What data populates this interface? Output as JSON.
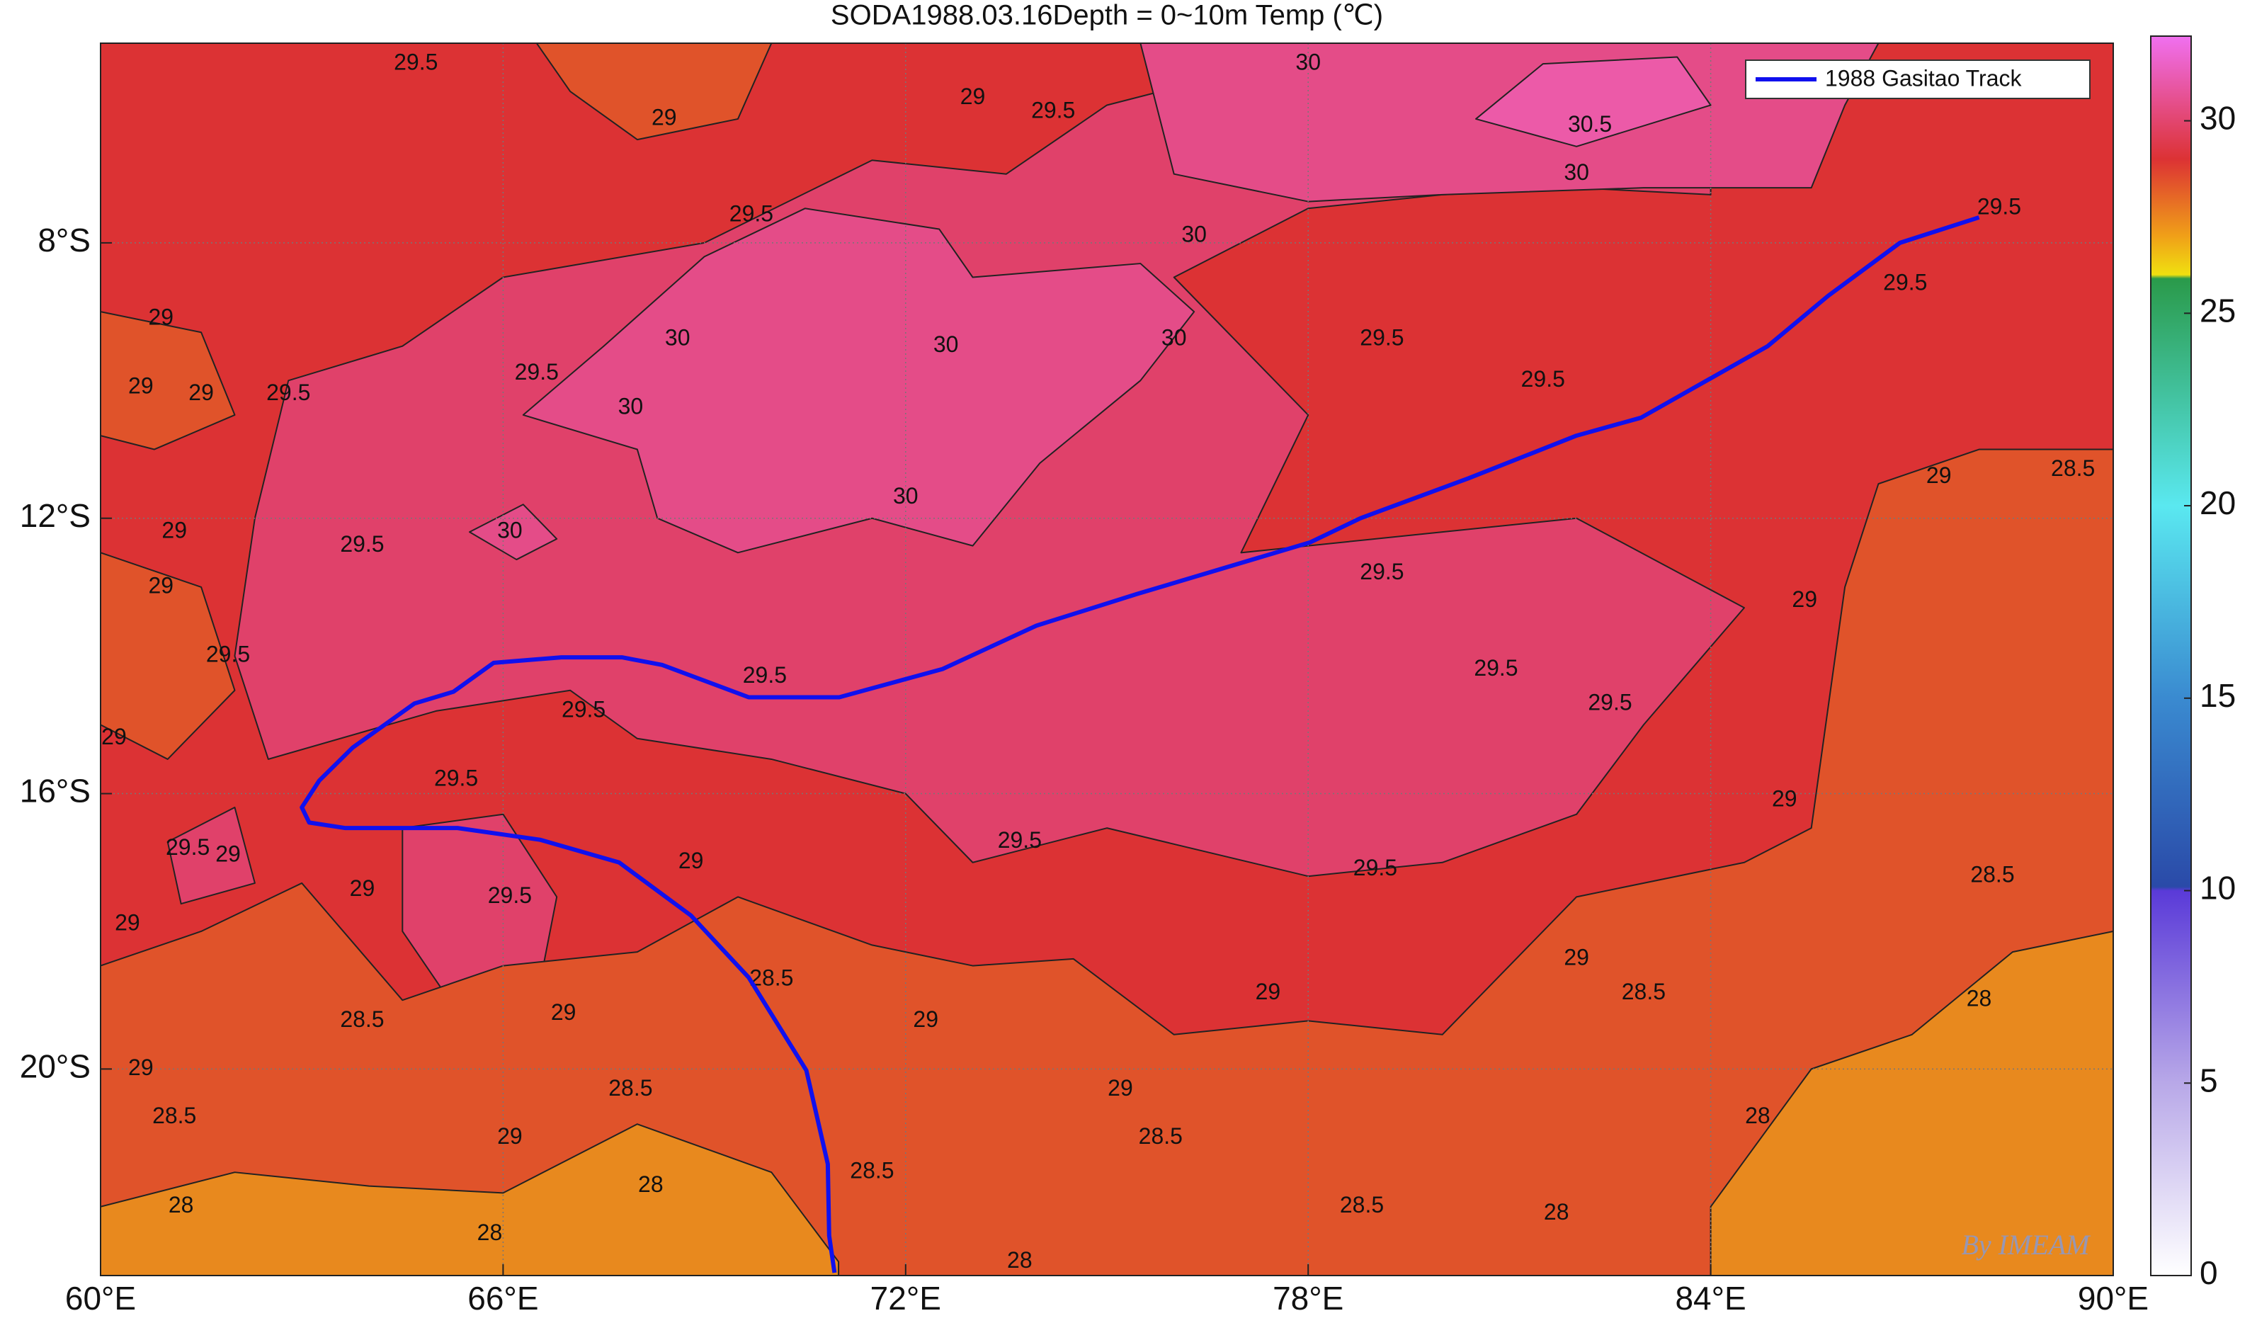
{
  "chart_data": {
    "type": "contour-map",
    "title": "SODA1988.03.16Depth = 0~10m Temp (℃)",
    "xlim": [
      60,
      90
    ],
    "ylim": [
      -23,
      -5.1
    ],
    "xticks": [
      {
        "value": 60,
        "label": "60°E"
      },
      {
        "value": 66,
        "label": "66°E"
      },
      {
        "value": 72,
        "label": "72°E"
      },
      {
        "value": 78,
        "label": "78°E"
      },
      {
        "value": 84,
        "label": "84°E"
      },
      {
        "value": 90,
        "label": "90°E"
      }
    ],
    "yticks": [
      {
        "value": -8,
        "label": "8°S"
      },
      {
        "value": -12,
        "label": "12°S"
      },
      {
        "value": -16,
        "label": "16°S"
      },
      {
        "value": -20,
        "label": "20°S"
      }
    ],
    "grid": true,
    "background_color": "#dc3234",
    "regions": [
      {
        "level": 29.5,
        "color": "#e0416a",
        "lon": [
          62.3,
          62.8,
          64.5,
          66,
          69,
          71.5,
          73.5,
          75,
          77,
          80,
          84,
          84,
          82,
          80,
          78,
          76,
          78,
          77,
          80,
          82,
          84.5,
          83,
          82,
          80,
          78,
          75,
          73,
          72,
          70,
          68,
          67,
          65,
          62.5,
          62
        ],
        "lat": [
          -12,
          -10,
          -9.5,
          -8.5,
          -8,
          -6.8,
          -7,
          -6,
          -5.5,
          -5.2,
          -5.1,
          -7.3,
          -7.2,
          -7.3,
          -7.5,
          -8.5,
          -10.5,
          -12.5,
          -12.2,
          -12,
          -13.3,
          -15,
          -16.3,
          -17,
          -17.2,
          -16.5,
          -17,
          -16,
          -15.5,
          -15.2,
          -14.5,
          -14.8,
          -15.5,
          -14
        ]
      },
      {
        "level": 29.5,
        "color": "#e0416a",
        "lon": [
          64.5,
          66,
          66.8,
          66.5,
          65.2,
          64.5
        ],
        "lat": [
          -16.5,
          -16.3,
          -17.5,
          -19,
          -19,
          -18
        ]
      },
      {
        "level": 29.5,
        "color": "#e0416a",
        "lon": [
          61,
          62,
          62.3,
          61.2
        ],
        "lat": [
          -16.7,
          -16.2,
          -17.3,
          -17.6
        ]
      },
      {
        "level": 30,
        "color": "#e44c88",
        "lon": [
          66.3,
          67.5,
          69,
          70.5,
          72.5,
          73,
          75.5,
          76.3,
          75.5,
          74,
          73,
          71.5,
          69.5,
          68.3,
          68
        ],
        "lat": [
          -10.5,
          -9.5,
          -8.2,
          -7.5,
          -7.8,
          -8.5,
          -8.3,
          -9,
          -10,
          -11.2,
          -12.4,
          -12,
          -12.5,
          -12,
          -11
        ]
      },
      {
        "level": 30,
        "color": "#e44c88",
        "lon": [
          75.5,
          76,
          78,
          80,
          83,
          85.5,
          86,
          86.5
        ],
        "lat": [
          -5.1,
          -7,
          -7.4,
          -7.3,
          -7.2,
          -7.2,
          -6,
          -5.1
        ]
      },
      {
        "level": 30,
        "color": "#e44c88",
        "lon": [
          65.5,
          66.3,
          66.8,
          66.2
        ],
        "lat": [
          -12.2,
          -11.8,
          -12.3,
          -12.6
        ]
      },
      {
        "level": 30.5,
        "color": "#ec5aa8",
        "lon": [
          80.5,
          81.5,
          83.5,
          84,
          82
        ],
        "lat": [
          -6.2,
          -5.4,
          -5.3,
          -6,
          -6.6
        ]
      },
      {
        "level": 28.5,
        "color": "#e0532a",
        "lon": [
          60,
          60,
          61.5,
          63,
          64.5,
          66,
          68,
          69.5,
          71.5,
          73,
          74.5,
          76,
          78,
          80,
          82,
          84.5,
          85.5,
          86,
          86.5,
          88,
          90,
          90
        ],
        "lat": [
          -23,
          -18.5,
          -18,
          -17.3,
          -19,
          -18.5,
          -18.3,
          -17.5,
          -18.2,
          -18.5,
          -18.4,
          -19.5,
          -19.3,
          -19.5,
          -17.5,
          -17,
          -16.5,
          -13,
          -11.5,
          -11,
          -11,
          -23
        ]
      },
      {
        "level": 28.5,
        "color": "#e0532a",
        "lon": [
          60,
          61.5,
          62,
          60.8,
          60
        ],
        "lat": [
          -9,
          -9.3,
          -10.5,
          -11,
          -10.8
        ]
      },
      {
        "level": 28.5,
        "color": "#e0532a",
        "lon": [
          60,
          61.5,
          62,
          61,
          60
        ],
        "lat": [
          -12.5,
          -13,
          -14.5,
          -15.5,
          -15
        ]
      },
      {
        "level": 28.5,
        "color": "#e0532a",
        "lon": [
          66.5,
          70,
          69.5,
          68,
          67
        ],
        "lat": [
          -5.1,
          -5.1,
          -6.2,
          -6.5,
          -5.8
        ]
      },
      {
        "level": 28,
        "color": "#e8891e",
        "lon": [
          60,
          60,
          62,
          64,
          66,
          68,
          70,
          71,
          71
        ],
        "lat": [
          -23,
          -22,
          -21.5,
          -21.7,
          -21.8,
          -20.8,
          -21.5,
          -22.8,
          -23
        ]
      },
      {
        "level": 28,
        "color": "#e8891e",
        "lon": [
          84,
          84,
          85.5,
          87,
          88.5,
          90,
          90
        ],
        "lat": [
          -23,
          -22,
          -20,
          -19.5,
          -18.3,
          -18,
          -23
        ]
      }
    ],
    "contour_labels": [
      {
        "level": 29.5,
        "lon": 64.7,
        "lat": -5.4
      },
      {
        "level": 29,
        "lon": 68.4,
        "lat": -6.2
      },
      {
        "level": 29,
        "lon": 73.0,
        "lat": -5.9
      },
      {
        "level": 29.5,
        "lon": 74.2,
        "lat": -6.1
      },
      {
        "level": 30,
        "lon": 78.0,
        "lat": -5.4
      },
      {
        "level": 30.5,
        "lon": 82.2,
        "lat": -6.3
      },
      {
        "level": 30,
        "lon": 82.0,
        "lat": -7.0
      },
      {
        "level": 29.5,
        "lon": 88.3,
        "lat": -7.5
      },
      {
        "level": 29.5,
        "lon": 69.7,
        "lat": -7.6
      },
      {
        "level": 30,
        "lon": 76.3,
        "lat": -7.9
      },
      {
        "level": 29.5,
        "lon": 86.9,
        "lat": -8.6
      },
      {
        "level": 29,
        "lon": 60.9,
        "lat": -9.1
      },
      {
        "level": 30,
        "lon": 76.0,
        "lat": -9.4
      },
      {
        "level": 29.5,
        "lon": 79.1,
        "lat": -9.4
      },
      {
        "level": 30,
        "lon": 68.6,
        "lat": -9.4
      },
      {
        "level": 30,
        "lon": 72.6,
        "lat": -9.5
      },
      {
        "level": 29.5,
        "lon": 66.5,
        "lat": -9.9
      },
      {
        "level": 29.5,
        "lon": 81.5,
        "lat": -10.0
      },
      {
        "level": 29,
        "lon": 60.6,
        "lat": -10.1
      },
      {
        "level": 29.5,
        "lon": 62.8,
        "lat": -10.2
      },
      {
        "level": 29,
        "lon": 61.5,
        "lat": -10.2
      },
      {
        "level": 30,
        "lon": 67.9,
        "lat": -10.4
      },
      {
        "level": 28.5,
        "lon": 89.4,
        "lat": -11.3
      },
      {
        "level": 29,
        "lon": 87.4,
        "lat": -11.4
      },
      {
        "level": 30,
        "lon": 72.0,
        "lat": -11.7
      },
      {
        "level": 29,
        "lon": 61.1,
        "lat": -12.2
      },
      {
        "level": 30,
        "lon": 66.1,
        "lat": -12.2
      },
      {
        "level": 29.5,
        "lon": 63.9,
        "lat": -12.4
      },
      {
        "level": 29.5,
        "lon": 79.1,
        "lat": -12.8
      },
      {
        "level": 29,
        "lon": 60.9,
        "lat": -13.0
      },
      {
        "level": 29,
        "lon": 85.4,
        "lat": -13.2
      },
      {
        "level": 29.5,
        "lon": 61.9,
        "lat": -14.0
      },
      {
        "level": 29.5,
        "lon": 80.8,
        "lat": -14.2
      },
      {
        "level": 29.5,
        "lon": 69.9,
        "lat": -14.3
      },
      {
        "level": 29.5,
        "lon": 82.5,
        "lat": -14.7
      },
      {
        "level": 29.5,
        "lon": 67.2,
        "lat": -14.8
      },
      {
        "level": 29,
        "lon": 60.2,
        "lat": -15.2
      },
      {
        "level": 29.5,
        "lon": 65.3,
        "lat": -15.8
      },
      {
        "level": 29,
        "lon": 85.1,
        "lat": -16.1
      },
      {
        "level": 29.5,
        "lon": 61.3,
        "lat": -16.8
      },
      {
        "level": 29,
        "lon": 61.9,
        "lat": -16.9
      },
      {
        "level": 29.5,
        "lon": 79.0,
        "lat": -17.1
      },
      {
        "level": 29.5,
        "lon": 73.7,
        "lat": -16.7
      },
      {
        "level": 29,
        "lon": 68.8,
        "lat": -17.0
      },
      {
        "level": 28.5,
        "lon": 88.2,
        "lat": -17.2
      },
      {
        "level": 29,
        "lon": 63.9,
        "lat": -17.4
      },
      {
        "level": 29.5,
        "lon": 66.1,
        "lat": -17.5
      },
      {
        "level": 29,
        "lon": 60.4,
        "lat": -17.9
      },
      {
        "level": 29,
        "lon": 82.0,
        "lat": -18.4
      },
      {
        "level": 28.5,
        "lon": 70.0,
        "lat": -18.7
      },
      {
        "level": 28.5,
        "lon": 83.0,
        "lat": -18.9
      },
      {
        "level": 29,
        "lon": 77.4,
        "lat": -18.9
      },
      {
        "level": 29,
        "lon": 72.3,
        "lat": -19.3
      },
      {
        "level": 28.5,
        "lon": 63.9,
        "lat": -19.3
      },
      {
        "level": 29,
        "lon": 66.9,
        "lat": -19.2
      },
      {
        "level": 28,
        "lon": 88.0,
        "lat": -19.0
      },
      {
        "level": 29,
        "lon": 60.6,
        "lat": -20.0
      },
      {
        "level": 29,
        "lon": 75.2,
        "lat": -20.3
      },
      {
        "level": 28.5,
        "lon": 67.9,
        "lat": -20.3
      },
      {
        "level": 28.5,
        "lon": 61.1,
        "lat": -20.7
      },
      {
        "level": 28,
        "lon": 84.7,
        "lat": -20.7
      },
      {
        "level": 29,
        "lon": 66.1,
        "lat": -21.0
      },
      {
        "level": 28.5,
        "lon": 75.8,
        "lat": -21.0
      },
      {
        "level": 28.5,
        "lon": 71.5,
        "lat": -21.5
      },
      {
        "level": 28,
        "lon": 68.2,
        "lat": -21.7
      },
      {
        "level": 28,
        "lon": 61.2,
        "lat": -22.0
      },
      {
        "level": 28.5,
        "lon": 78.8,
        "lat": -22.0
      },
      {
        "level": 28,
        "lon": 81.7,
        "lat": -22.1
      },
      {
        "level": 28,
        "lon": 65.8,
        "lat": -22.4
      },
      {
        "level": 28,
        "lon": 73.7,
        "lat": -22.8
      }
    ],
    "track": {
      "name": "1988 Gasitao Track",
      "color": "#1010ee",
      "lon": [
        88.0,
        86.82,
        85.75,
        84.85,
        82.96,
        82.0,
        80.39,
        79.64,
        78.78,
        78.03,
        75.45,
        73.95,
        72.55,
        71.01,
        69.66,
        68.37,
        67.77,
        66.87,
        65.86,
        65.26,
        64.68,
        63.76,
        63.26,
        63.0,
        63.11,
        63.65,
        65.32,
        66.55,
        67.73,
        68.8,
        69.66,
        70.52,
        70.84,
        70.86,
        70.94
      ],
      "lat": [
        -7.63,
        -8.0,
        -8.77,
        -9.5,
        -10.54,
        -10.8,
        -11.42,
        -11.69,
        -12.0,
        -12.35,
        -13.1,
        -13.56,
        -14.19,
        -14.6,
        -14.6,
        -14.13,
        -14.02,
        -14.02,
        -14.1,
        -14.52,
        -14.69,
        -15.33,
        -15.81,
        -16.2,
        -16.42,
        -16.5,
        -16.5,
        -16.67,
        -17.0,
        -17.77,
        -18.67,
        -20.02,
        -21.38,
        -22.42,
        -22.96
      ]
    },
    "legend": "top-right",
    "watermark": "By IMEAM",
    "colorbar": {
      "lim": [
        0,
        32.2
      ],
      "ticks": [
        0,
        5,
        10,
        15,
        20,
        25,
        30
      ],
      "stops": [
        {
          "value": 0,
          "color": "#ffffff"
        },
        {
          "value": 5,
          "color": "#b8a8e8"
        },
        {
          "value": 10,
          "color": "#5a3ad8"
        },
        {
          "value": 10.1,
          "color": "#2a4aa8"
        },
        {
          "value": 15,
          "color": "#3a8ad0"
        },
        {
          "value": 20,
          "color": "#5ae8f0"
        },
        {
          "value": 25.9,
          "color": "#2a9a4a"
        },
        {
          "value": 26,
          "color": "#f0e010"
        },
        {
          "value": 27,
          "color": "#f0a018"
        },
        {
          "value": 29,
          "color": "#dc3234"
        },
        {
          "value": 32.2,
          "color": "#f070f0"
        }
      ]
    }
  }
}
